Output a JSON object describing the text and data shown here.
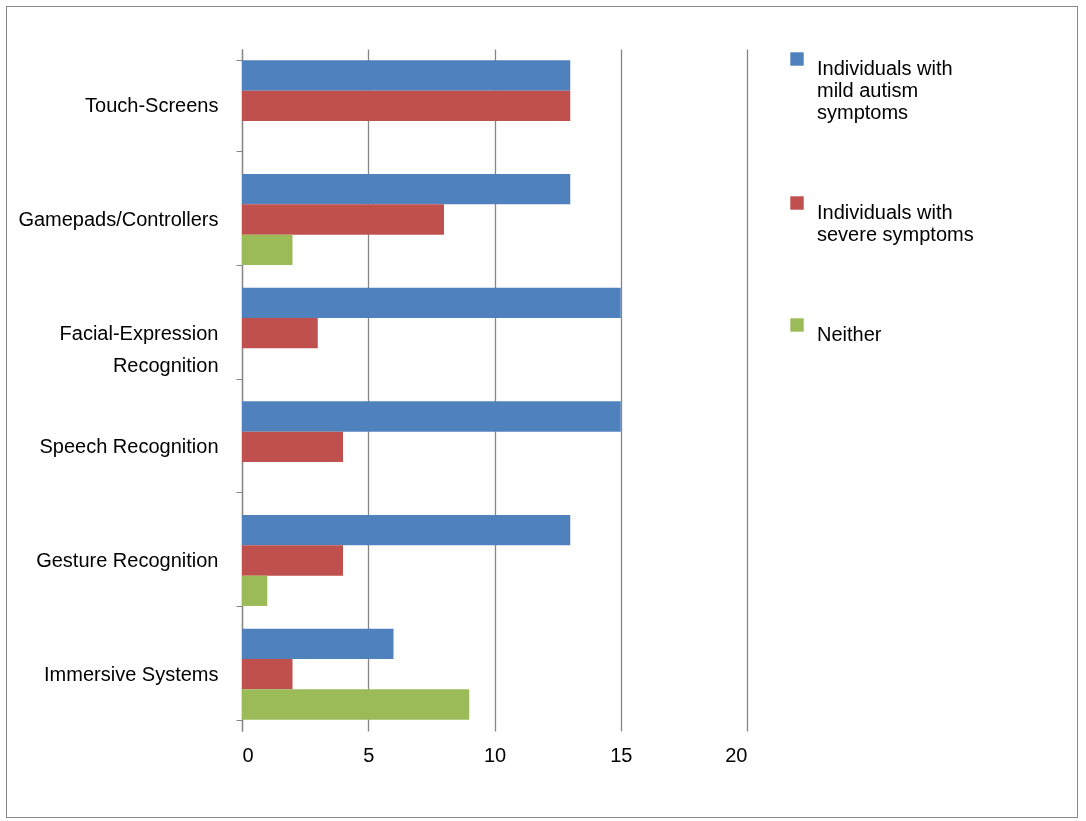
{
  "chart_data": {
    "type": "bar",
    "orientation": "horizontal",
    "categories": [
      "Touch-Screens",
      "Gamepads/Controllers",
      "Facial-Expression Recognition",
      "Speech Recognition",
      "Gesture Recognition",
      "Immersive Systems"
    ],
    "series": [
      {
        "name": "Individuals with mild autism symptoms",
        "color": "#4f81bd",
        "values": [
          13,
          13,
          15,
          15,
          13,
          6
        ]
      },
      {
        "name": "Individuals with severe symptoms",
        "color": "#c0504d",
        "values": [
          13,
          8,
          3,
          4,
          4,
          2
        ]
      },
      {
        "name": "Neither",
        "color": "#9bbb59",
        "values": [
          null,
          2,
          null,
          null,
          1,
          9
        ]
      }
    ],
    "xlim": [
      0,
      20
    ],
    "xticks": [
      0,
      5,
      10,
      15,
      20
    ],
    "grid": "x",
    "legend": "right"
  }
}
